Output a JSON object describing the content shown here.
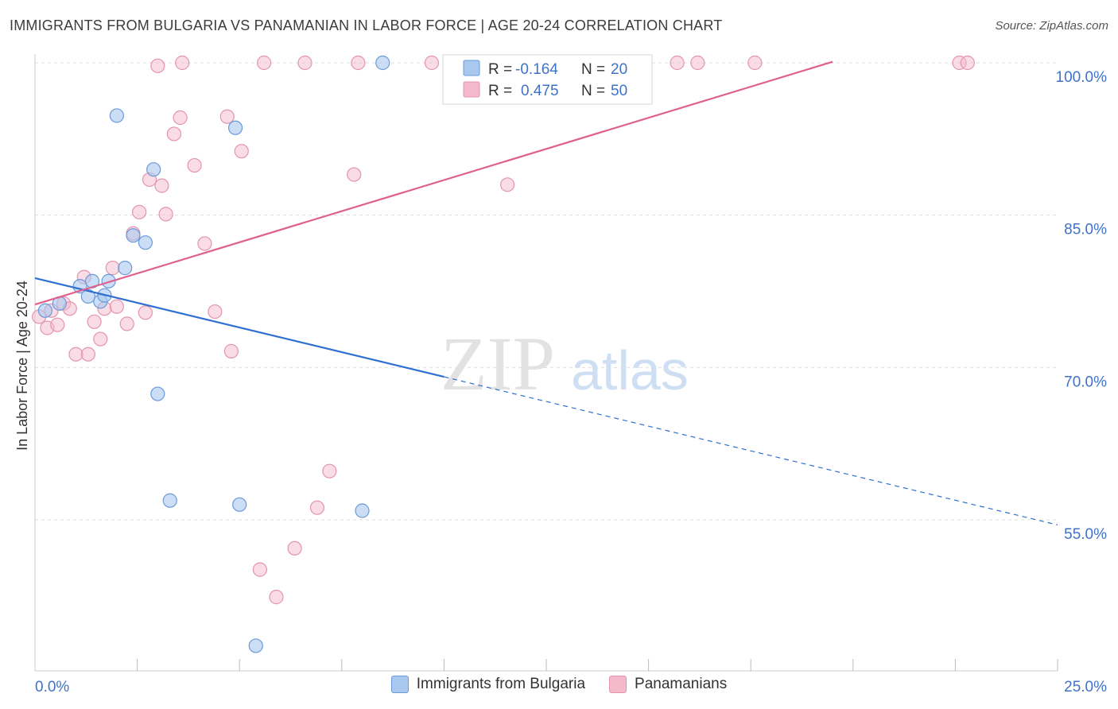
{
  "header": {
    "title": "IMMIGRANTS FROM BULGARIA VS PANAMANIAN IN LABOR FORCE | AGE 20-24 CORRELATION CHART",
    "source": "Source: ZipAtlas.com"
  },
  "watermark": {
    "zip": "ZIP",
    "atlas": "atlas"
  },
  "colors": {
    "blue_fill": "#a9c8ef",
    "blue_stroke": "#6a9ad8",
    "blue_line": "#2e6fcf",
    "pink_fill": "#f4b9cb",
    "pink_stroke": "#e494ad",
    "pink_line": "#e0608c",
    "tick_label": "#3f72c5",
    "grid": "#dddddd"
  },
  "legend_top": {
    "rows": [
      {
        "r_label": "R =",
        "r_value": "-0.164",
        "n_label": "N =",
        "n_value": "20"
      },
      {
        "r_label": "R =",
        "r_value": "0.475",
        "n_label": "N =",
        "n_value": "50"
      }
    ]
  },
  "legend_bottom": [
    "Immigrants from Bulgaria",
    "Panamanians"
  ],
  "chart_data": {
    "type": "scatter",
    "title": "IMMIGRANTS FROM BULGARIA VS PANAMANIAN IN LABOR FORCE | AGE 20-24 CORRELATION CHART",
    "xlabel": "",
    "ylabel": "In Labor Force | Age 20-24",
    "xlim": [
      0,
      25
    ],
    "ylim": [
      42,
      101
    ],
    "x_tick_labels": [
      {
        "value": 0,
        "label": "0.0%"
      },
      {
        "value": 25,
        "label": "25.0%"
      }
    ],
    "y_tick_labels": [
      {
        "value": 55,
        "label": "55.0%"
      },
      {
        "value": 70,
        "label": "70.0%"
      },
      {
        "value": 85,
        "label": "85.0%"
      },
      {
        "value": 100,
        "label": "100.0%"
      }
    ],
    "series": [
      {
        "name": "Immigrants from Bulgaria",
        "r": -0.164,
        "n": 20,
        "trend": {
          "x": [
            0,
            25
          ],
          "y": [
            78.8,
            54.5
          ],
          "solid_until_x": 10
        },
        "points": [
          [
            0.25,
            75.6
          ],
          [
            1.1,
            78.0
          ],
          [
            1.4,
            78.5
          ],
          [
            1.3,
            77.0
          ],
          [
            1.6,
            76.5
          ],
          [
            1.8,
            78.5
          ],
          [
            2.2,
            79.8
          ],
          [
            2.4,
            83.0
          ],
          [
            2.7,
            82.3
          ],
          [
            2.0,
            94.8
          ],
          [
            2.9,
            89.5
          ],
          [
            3.0,
            67.4
          ],
          [
            3.3,
            56.9
          ],
          [
            4.9,
            93.6
          ],
          [
            5.0,
            56.5
          ],
          [
            5.4,
            42.6
          ],
          [
            8.5,
            100.0
          ],
          [
            8.0,
            55.9
          ],
          [
            0.6,
            76.3
          ],
          [
            1.7,
            77.1
          ]
        ]
      },
      {
        "name": "Panamanians",
        "r": 0.475,
        "n": 50,
        "trend": {
          "x": [
            0,
            19.5
          ],
          "y": [
            76.2,
            100.1
          ]
        },
        "points": [
          [
            0.1,
            75.0
          ],
          [
            0.3,
            73.9
          ],
          [
            0.4,
            75.6
          ],
          [
            0.55,
            74.2
          ],
          [
            0.7,
            76.3
          ],
          [
            0.85,
            75.8
          ],
          [
            1.0,
            71.3
          ],
          [
            1.2,
            78.9
          ],
          [
            1.3,
            71.3
          ],
          [
            1.45,
            74.5
          ],
          [
            1.6,
            72.8
          ],
          [
            1.7,
            75.8
          ],
          [
            1.9,
            79.8
          ],
          [
            2.0,
            76.0
          ],
          [
            2.25,
            74.3
          ],
          [
            2.4,
            83.2
          ],
          [
            2.55,
            85.3
          ],
          [
            2.7,
            75.4
          ],
          [
            2.8,
            88.5
          ],
          [
            3.1,
            87.9
          ],
          [
            3.2,
            85.1
          ],
          [
            3.4,
            93.0
          ],
          [
            3.55,
            94.6
          ],
          [
            3.9,
            89.9
          ],
          [
            4.15,
            82.2
          ],
          [
            4.4,
            75.5
          ],
          [
            4.7,
            94.7
          ],
          [
            4.8,
            71.6
          ],
          [
            5.05,
            91.3
          ],
          [
            5.5,
            50.1
          ],
          [
            5.9,
            47.4
          ],
          [
            6.35,
            52.2
          ],
          [
            6.9,
            56.2
          ],
          [
            7.2,
            59.8
          ],
          [
            7.8,
            89.0
          ],
          [
            3.0,
            99.7
          ],
          [
            3.6,
            100.0
          ],
          [
            5.6,
            100.0
          ],
          [
            6.6,
            100.0
          ],
          [
            7.9,
            100.0
          ],
          [
            9.7,
            100.0
          ],
          [
            11.7,
            100.0
          ],
          [
            13.9,
            100.0
          ],
          [
            14.8,
            100.0
          ],
          [
            15.7,
            100.0
          ],
          [
            16.2,
            100.0
          ],
          [
            17.6,
            100.0
          ],
          [
            22.6,
            100.0
          ],
          [
            22.8,
            100.0
          ],
          [
            11.55,
            88.0
          ]
        ]
      }
    ]
  }
}
